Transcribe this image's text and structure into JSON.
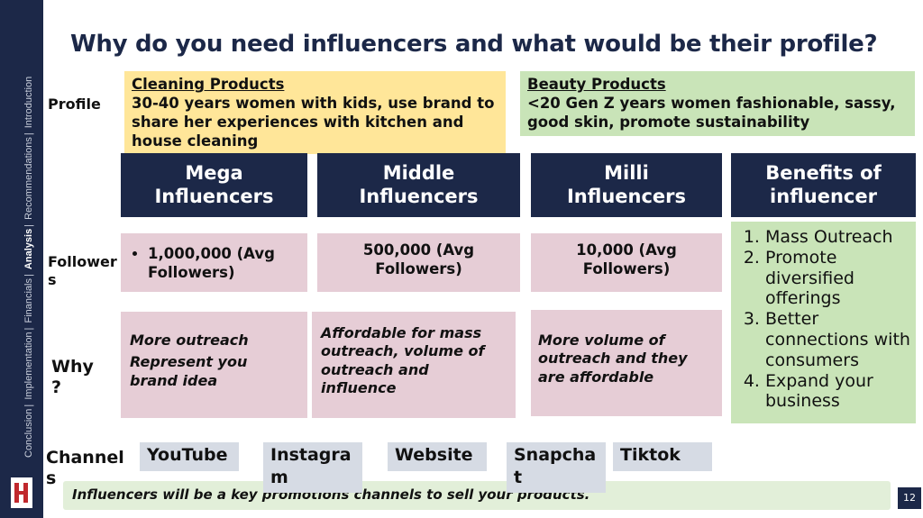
{
  "sidebar": {
    "nav": [
      "Conclusion",
      "Implementation",
      "Financials",
      "Analysis",
      "Recommendations",
      "Introduction"
    ]
  },
  "title": "Why do you need influencers and what would be their profile?",
  "profiles": [
    {
      "heading": "Cleaning Products",
      "text": "30-40 years women with kids, use brand to share her experiences with kitchen and house cleaning"
    },
    {
      "heading": "Beauty Products",
      "text": "<20 Gen Z years women fashionable, sassy, good skin, promote sustainability"
    }
  ],
  "row_labels": [
    "Profile",
    "Followers",
    "Why ?",
    "Channels"
  ],
  "columns": [
    "Mega Influencers",
    "Middle Influencers",
    "Milli Influencers",
    "Benefits of influencer"
  ],
  "followers": [
    "1,000,000 (Avg Followers)",
    "500,000 (Avg Followers)",
    "10,000 (Avg Followers)"
  ],
  "why": [
    [
      "More outreach",
      "Represent you brand idea"
    ],
    "Affordable for mass outreach, volume of outreach and influence",
    "More volume of outreach and they are affordable"
  ],
  "benefits": [
    "Mass Outreach",
    "Promote diversified offerings",
    "Better connections with consumers",
    "Expand your business"
  ],
  "channels": [
    "YouTube",
    "Instagram",
    "Website",
    "Snapchat",
    "Tiktok"
  ],
  "footer": "Influencers will be a key promotions channels to sell your products.",
  "page_number": 12
}
